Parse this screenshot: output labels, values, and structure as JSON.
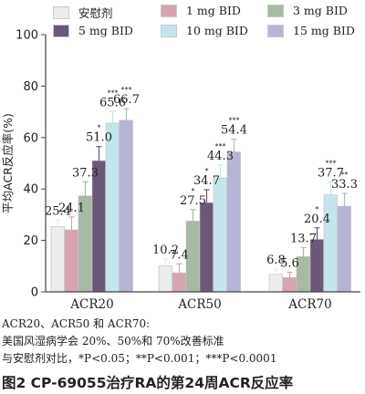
{
  "chart_data": {
    "type": "bar",
    "categories": [
      "ACR20",
      "ACR50",
      "ACR70"
    ],
    "ylabel": "平均ACR反应率(%)",
    "ylim": [
      0,
      100
    ],
    "yticks": [
      0,
      20,
      40,
      60,
      80,
      100
    ],
    "series": [
      {
        "name": "安慰剂",
        "color": "#ececec",
        "values": [
          25.4,
          10.2,
          6.8
        ],
        "errors": [
          2.5,
          2.5,
          2.0
        ],
        "labels": [
          "25.4",
          "10.2",
          "6.8"
        ],
        "marks": [
          "",
          "",
          ""
        ]
      },
      {
        "name": "1 mg BID",
        "color": "#d9a3b2",
        "values": [
          24.1,
          7.4,
          5.6
        ],
        "errors": [
          5.0,
          3.5,
          2.0
        ],
        "labels": [
          "24.1",
          "7.4",
          "5.6"
        ],
        "marks": [
          "",
          "",
          ""
        ]
      },
      {
        "name": "3 mg BID",
        "color": "#a7baa3",
        "values": [
          37.3,
          27.5,
          13.7
        ],
        "errors": [
          5.5,
          4.5,
          3.5
        ],
        "labels": [
          "37.3",
          "27.5",
          "13.7"
        ],
        "marks": [
          "",
          "*",
          ""
        ]
      },
      {
        "name": "5 mg BID",
        "color": "#6b5878",
        "values": [
          51.0,
          34.7,
          20.4
        ],
        "errors": [
          5.5,
          5.0,
          4.5
        ],
        "labels": [
          "51.0",
          "34.7",
          "20.4"
        ],
        "marks": [
          "*",
          "*",
          "*"
        ]
      },
      {
        "name": "10 mg BID",
        "color": "#c3e6ec",
        "values": [
          65.6,
          44.3,
          37.7
        ],
        "errors": [
          4.5,
          5.0,
          5.0
        ],
        "labels": [
          "65.6",
          "44.3",
          "37.7"
        ],
        "marks": [
          "***",
          "***",
          "***"
        ]
      },
      {
        "name": "15 mg BID",
        "color": "#b7b5d6",
        "values": [
          66.7,
          54.4,
          33.3
        ],
        "errors": [
          4.5,
          5.0,
          5.0
        ],
        "labels": [
          "66.7",
          "54.4",
          "33.3"
        ],
        "marks": [
          "***",
          "***",
          "**"
        ]
      }
    ]
  },
  "notes": [
    "ACR20、ACR50 和 ACR70:",
    "美国风湿病学会 20%、50%和 70%改善标准",
    "与安慰剂对比，*P<0.05；**P<0.001；***P<0.0001"
  ],
  "caption": "图2 CP-69055治疗RA的第24周ACR反应率"
}
